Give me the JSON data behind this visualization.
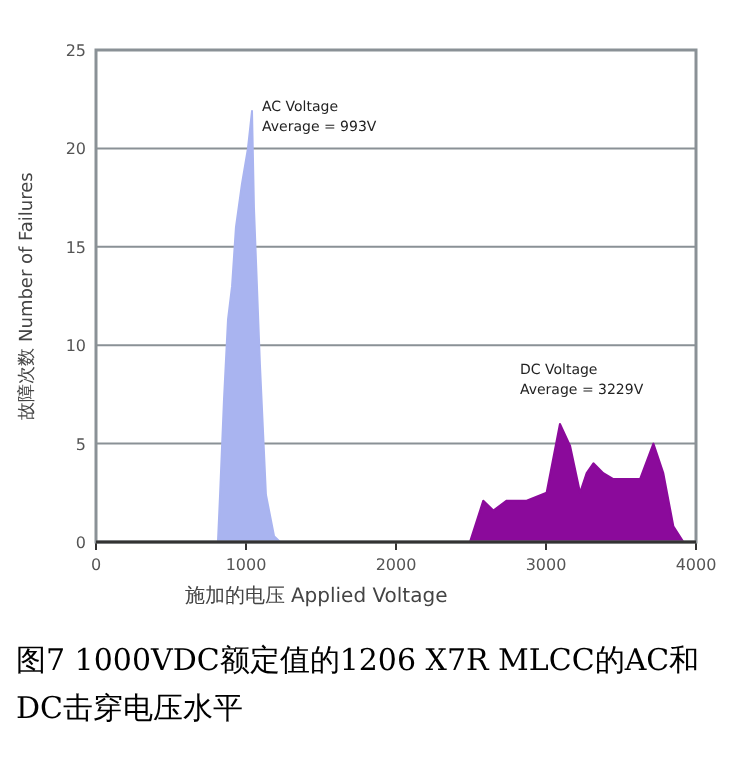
{
  "chart_data": {
    "type": "area",
    "title": "图7 1000VDC额定值的1206 X7R MLCC的AC和DC击穿电压水平",
    "xlabel": "施加的电压 Applied Voltage",
    "ylabel": "故障次数 Number of Failures",
    "xlim": [
      0,
      4000
    ],
    "ylim": [
      0,
      25
    ],
    "xticks": [
      0,
      1000,
      2000,
      3000,
      4000
    ],
    "yticks": [
      0,
      5,
      10,
      15,
      20,
      25
    ],
    "grid": "y",
    "annotations": [
      "AC Voltage\nAverage = 993V",
      "DC Voltage\nAverage = 3229V"
    ],
    "series": [
      {
        "color": "#a9b4f0",
        "x": [
          813,
          827,
          853,
          880,
          907,
          933,
          973,
          1013,
          1040,
          1053,
          1093,
          1133,
          1187,
          1227
        ],
        "values": [
          0,
          2.4,
          7.2,
          11.3,
          13,
          16,
          18.2,
          20,
          21.9,
          17,
          9,
          2.4,
          0.3,
          0
        ]
      },
      {
        "color": "#8b0a9b",
        "x": [
          2493,
          2582,
          2649,
          2738,
          2871,
          3004,
          3093,
          3160,
          3227,
          3271,
          3316,
          3382,
          3449,
          3627,
          3716,
          3782,
          3849,
          3916
        ],
        "values": [
          0,
          2.1,
          1.6,
          2.1,
          2.1,
          2.5,
          6.0,
          4.9,
          2.5,
          3.5,
          4.0,
          3.5,
          3.2,
          3.2,
          5.0,
          3.5,
          0.8,
          0
        ]
      }
    ]
  }
}
